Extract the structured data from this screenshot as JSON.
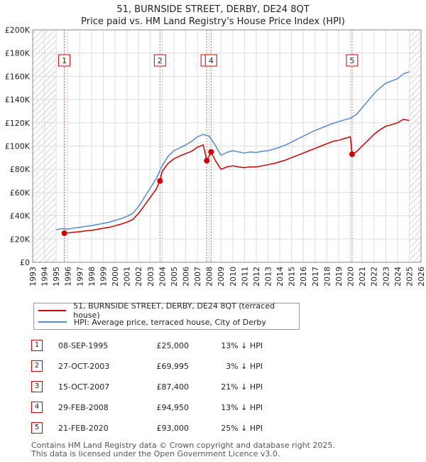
{
  "title": "51, BURNSIDE STREET, DERBY, DE24 8QT",
  "subtitle": "Price paid vs. HM Land Registry's House Price Index (HPI)",
  "colors": {
    "property": "#cc0000",
    "hpi": "#5588cc",
    "hatch": "#999999",
    "grid": "#dddddd",
    "vline": "#e06060"
  },
  "legend": {
    "property_label": "51, BURNSIDE STREET, DERBY, DE24 8QT (terraced house)",
    "hpi_label": "HPI: Average price, terraced house, City of Derby"
  },
  "transactions": [
    {
      "n": "1",
      "date": "08-SEP-1995",
      "price": "£25,000",
      "hpi": "13% ↓ HPI"
    },
    {
      "n": "2",
      "date": "27-OCT-2003",
      "price": "£69,995",
      "hpi": "3% ↓ HPI"
    },
    {
      "n": "3",
      "date": "15-OCT-2007",
      "price": "£87,400",
      "hpi": "21% ↓ HPI"
    },
    {
      "n": "4",
      "date": "29-FEB-2008",
      "price": "£94,950",
      "hpi": "13% ↓ HPI"
    },
    {
      "n": "5",
      "date": "21-FEB-2020",
      "price": "£93,000",
      "hpi": "25% ↓ HPI"
    }
  ],
  "footer": {
    "line1": "Contains HM Land Registry data © Crown copyright and database right 2025.",
    "line2": "This data is licensed under the Open Government Licence v3.0."
  },
  "chart_data": {
    "type": "line",
    "title": "51, BURNSIDE STREET, DERBY, DE24 8QT",
    "subtitle": "Price paid vs. HM Land Registry's House Price Index (HPI)",
    "xlim": [
      1993,
      2026
    ],
    "ylim": [
      0,
      200000
    ],
    "grid": true,
    "hatched_ranges": [
      [
        1993,
        1995.0
      ],
      [
        2025.0,
        2026
      ]
    ],
    "x_ticks": [
      1993,
      1994,
      1995,
      1996,
      1997,
      1998,
      1999,
      2000,
      2001,
      2002,
      2003,
      2004,
      2005,
      2006,
      2007,
      2008,
      2009,
      2010,
      2011,
      2012,
      2013,
      2014,
      2015,
      2016,
      2017,
      2018,
      2019,
      2020,
      2021,
      2022,
      2023,
      2024,
      2025,
      2026
    ],
    "y_ticks": [
      {
        "value": 0,
        "label": "£0"
      },
      {
        "value": 20000,
        "label": "£20K"
      },
      {
        "value": 40000,
        "label": "£40K"
      },
      {
        "value": 60000,
        "label": "£60K"
      },
      {
        "value": 80000,
        "label": "£80K"
      },
      {
        "value": 100000,
        "label": "£100K"
      },
      {
        "value": 120000,
        "label": "£120K"
      },
      {
        "value": 140000,
        "label": "£140K"
      },
      {
        "value": 160000,
        "label": "£160K"
      },
      {
        "value": 180000,
        "label": "£180K"
      },
      {
        "value": 200000,
        "label": "£200K"
      }
    ],
    "sales": [
      {
        "n": "1",
        "x": 1995.69,
        "y": 25000
      },
      {
        "n": "2",
        "x": 2003.82,
        "y": 69995
      },
      {
        "n": "3",
        "x": 2007.79,
        "y": 87400
      },
      {
        "n": "4",
        "x": 2008.16,
        "y": 94950
      },
      {
        "n": "5",
        "x": 2020.14,
        "y": 93000
      }
    ],
    "series": [
      {
        "name": "HPI: Average price, terraced house, City of Derby",
        "x": [
          1995.0,
          1995.5,
          1996.0,
          1996.5,
          1997.0,
          1997.5,
          1998.0,
          1998.5,
          1999.0,
          1999.5,
          2000.0,
          2000.5,
          2001.0,
          2001.5,
          2002.0,
          2002.5,
          2003.0,
          2003.5,
          2004.0,
          2004.5,
          2005.0,
          2005.5,
          2006.0,
          2006.5,
          2007.0,
          2007.5,
          2008.0,
          2008.5,
          2009.0,
          2009.5,
          2010.0,
          2010.5,
          2011.0,
          2011.5,
          2012.0,
          2012.5,
          2013.0,
          2013.5,
          2014.0,
          2014.5,
          2015.0,
          2015.5,
          2016.0,
          2016.5,
          2017.0,
          2017.5,
          2018.0,
          2018.5,
          2019.0,
          2019.5,
          2020.0,
          2020.5,
          2021.0,
          2021.5,
          2022.0,
          2022.5,
          2023.0,
          2023.5,
          2024.0,
          2024.5,
          2025.0
        ],
        "values": [
          28000,
          29000,
          28500,
          29500,
          30000,
          31000,
          31500,
          32500,
          33500,
          34500,
          36000,
          37500,
          39500,
          42000,
          48000,
          56000,
          64000,
          72000,
          83000,
          91000,
          96000,
          98500,
          101000,
          104000,
          108000,
          110000,
          108500,
          101000,
          92000,
          94500,
          96000,
          95000,
          94000,
          95000,
          94500,
          95500,
          96000,
          97500,
          99000,
          101000,
          103500,
          106000,
          108500,
          111000,
          113500,
          115500,
          117500,
          119500,
          121000,
          122500,
          124000,
          127000,
          133000,
          139000,
          145000,
          150000,
          154000,
          156000,
          158000,
          162000,
          164000
        ]
      },
      {
        "name": "51, BURNSIDE STREET, DERBY, DE24 8QT (terraced house)",
        "x": [
          1995.69,
          1996.0,
          1996.5,
          1997.0,
          1997.5,
          1998.0,
          1998.5,
          1999.0,
          1999.5,
          2000.0,
          2000.5,
          2001.0,
          2001.5,
          2002.0,
          2002.5,
          2003.0,
          2003.5,
          2003.82,
          2004.0,
          2004.5,
          2005.0,
          2005.5,
          2006.0,
          2006.5,
          2007.0,
          2007.5,
          2007.79,
          2008.16,
          2008.5,
          2009.0,
          2009.5,
          2010.0,
          2010.5,
          2011.0,
          2011.5,
          2012.0,
          2012.5,
          2013.0,
          2013.5,
          2014.0,
          2014.5,
          2015.0,
          2015.5,
          2016.0,
          2016.5,
          2017.0,
          2017.5,
          2018.0,
          2018.5,
          2019.0,
          2019.5,
          2020.0,
          2020.14,
          2020.5,
          2021.0,
          2021.5,
          2022.0,
          2022.5,
          2023.0,
          2023.5,
          2024.0,
          2024.5,
          2025.0
        ],
        "values": [
          25000,
          25200,
          25800,
          26300,
          27100,
          27500,
          28400,
          29300,
          30100,
          31400,
          32800,
          34500,
          36700,
          42000,
          49000,
          56000,
          63000,
          69995,
          78000,
          85000,
          89000,
          91500,
          93500,
          95500,
          99000,
          101000,
          87400,
          94950,
          88000,
          80000,
          82000,
          83000,
          82000,
          81500,
          82000,
          82000,
          83000,
          84000,
          85000,
          86500,
          88000,
          90000,
          92000,
          94000,
          96000,
          98000,
          100000,
          102000,
          104000,
          105000,
          106500,
          108000,
          93000,
          95000,
          100000,
          105000,
          110000,
          114000,
          117000,
          118500,
          120000,
          123000,
          122000
        ]
      }
    ]
  }
}
